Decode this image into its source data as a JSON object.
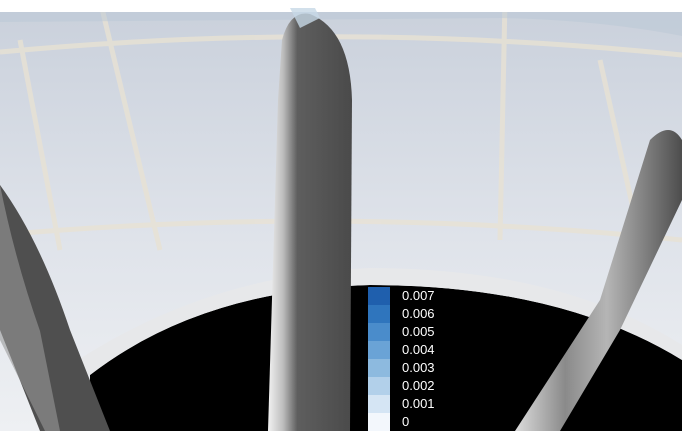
{
  "colors": {
    "background_wall": "#cdd3dd",
    "duct_floor": "#000000",
    "blade": "#5a5a5a",
    "legend_text": "#ffffff"
  },
  "legend": {
    "items": [
      {
        "label": "0.007",
        "color": "#1f5fad"
      },
      {
        "label": "0.006",
        "color": "#2f75bd"
      },
      {
        "label": "0.005",
        "color": "#4a8ccb"
      },
      {
        "label": "0.004",
        "color": "#6aa3d6"
      },
      {
        "label": "0.003",
        "color": "#8dbadf"
      },
      {
        "label": "0.002",
        "color": "#b2d0ea"
      },
      {
        "label": "0.001",
        "color": "#d5e5f4"
      },
      {
        "label": "0",
        "color": "#f3f7fc"
      }
    ]
  }
}
